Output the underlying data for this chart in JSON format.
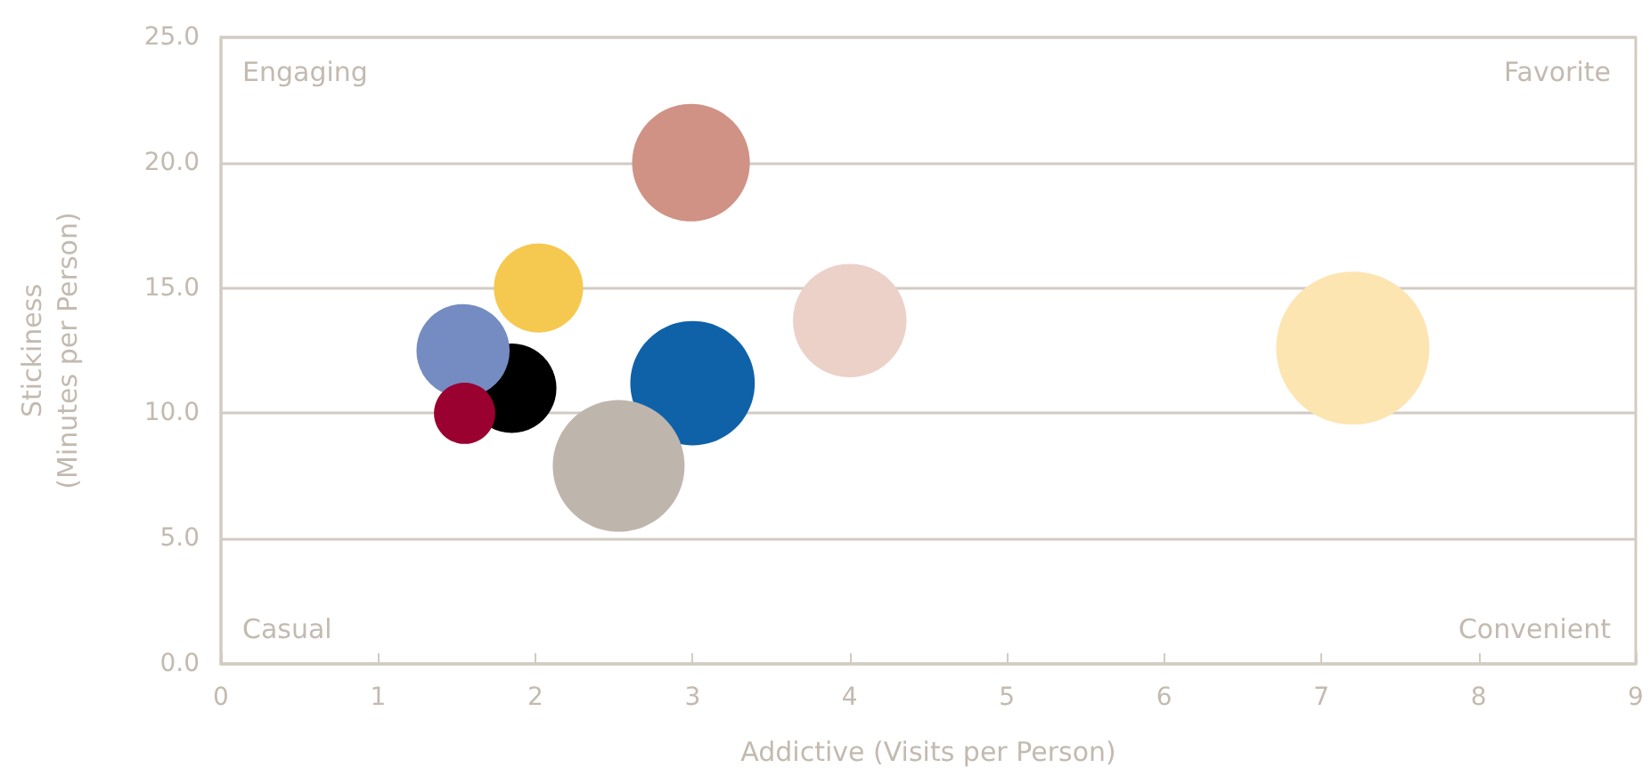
{
  "chart_data": {
    "type": "bubble",
    "xlabel": "Addictive (Visits per Person)",
    "ylabel": "Stickiness\n(Minutes per Person)",
    "x": [
      2.99,
      2.02,
      4.0,
      7.2,
      1.85,
      1.54,
      1.55,
      3.0,
      2.53
    ],
    "values": [
      20.0,
      15.0,
      13.7,
      12.6,
      11.0,
      12.5,
      10.0,
      11.2,
      7.9
    ],
    "sizes": [
      0.59,
      0.34,
      0.55,
      1,
      0.34,
      0.37,
      0.16,
      0.66,
      0.74
    ],
    "colors": [
      "#d09285",
      "#f5c84f",
      "#ecd1c9",
      "#fde5b2",
      "#000000",
      "#758cc2",
      "#9a0030",
      "#0f62a8",
      "#beb5ad"
    ],
    "xlim": [
      0,
      9
    ],
    "xticks": [
      0,
      1,
      2,
      3,
      4,
      5,
      6,
      7,
      8,
      9
    ],
    "ylim": [
      0,
      25
    ],
    "yticks": [
      {
        "value": 0,
        "label": "0.0"
      },
      {
        "value": 5,
        "label": "5.0"
      },
      {
        "value": 10,
        "label": "10.0"
      },
      {
        "value": 15,
        "label": "15.0"
      },
      {
        "value": 20,
        "label": "20.0"
      },
      {
        "value": 25,
        "label": "25.0"
      }
    ],
    "annotations": [
      "Engaging",
      "Favorite",
      "Casual",
      "Convenient"
    ],
    "grid": "y"
  }
}
